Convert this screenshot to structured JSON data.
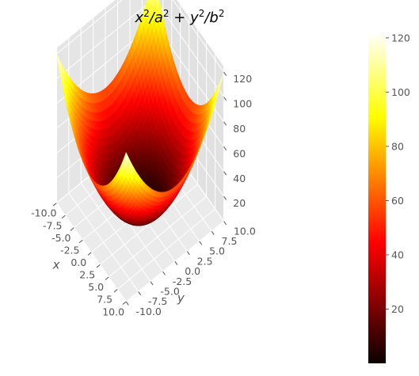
{
  "chart_data": {
    "type": "surface",
    "title_tex": "x²/a² + y²/b²",
    "title_parts": [
      "x",
      "2",
      "/a",
      "2",
      " + y",
      "2",
      "/b",
      "2"
    ],
    "function": "z = x^2/a^2 + y^2/b^2 (elliptic paraboloid)",
    "colormap": "hot",
    "xlabel": "x",
    "ylabel": "y",
    "xlim": [
      -10,
      10
    ],
    "ylim": [
      -10,
      10
    ],
    "zlim": [
      0,
      125
    ],
    "x_ticks": [
      -10.0,
      -7.5,
      -5.0,
      -2.5,
      0.0,
      2.5,
      5.0,
      7.5,
      10.0
    ],
    "y_ticks": [
      -10.0,
      -7.5,
      -5.0,
      -2.5,
      0.0,
      2.5,
      5.0,
      7.5,
      10.0
    ],
    "z_ticks": [
      20,
      40,
      60,
      80,
      100,
      120
    ],
    "colorbar": {
      "range": [
        0,
        122
      ],
      "ticks": [
        20,
        40,
        60,
        80,
        100,
        120
      ]
    },
    "grid": true,
    "style": "ggplot"
  },
  "colors": {
    "pane": "#e5e5e5",
    "grid": "#ffffff",
    "text": "#555555"
  }
}
